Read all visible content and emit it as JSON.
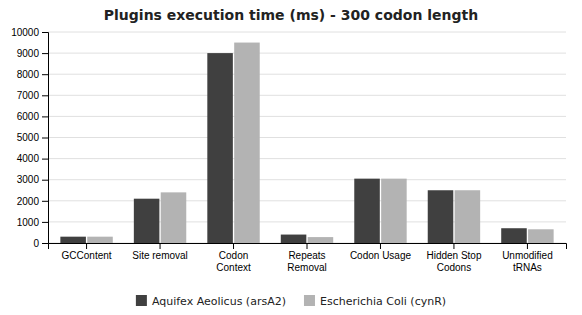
{
  "chart_data": {
    "type": "bar",
    "title": "Plugins execution time (ms) - 300 codon length",
    "categories": [
      "GCContent",
      "Site removal",
      "Codon\nContext",
      "Repeats\nRemoval",
      "Codon Usage",
      "Hidden Stop\nCodons",
      "Unmodified\ntRNAs"
    ],
    "series": [
      {
        "name": "Aquifex Aeolicus (arsA2)",
        "color": "#404040",
        "values": [
          300,
          2100,
          9000,
          400,
          3050,
          2500,
          700
        ]
      },
      {
        "name": "Escherichia Coli (cynR)",
        "color": "#b3b3b3",
        "values": [
          300,
          2400,
          9500,
          280,
          3050,
          2500,
          650
        ]
      }
    ],
    "ylim": [
      0,
      10000
    ],
    "yticks": [
      0,
      1000,
      2000,
      3000,
      4000,
      5000,
      6000,
      7000,
      8000,
      9000,
      10000
    ],
    "grid": true,
    "legend": "bottom"
  }
}
